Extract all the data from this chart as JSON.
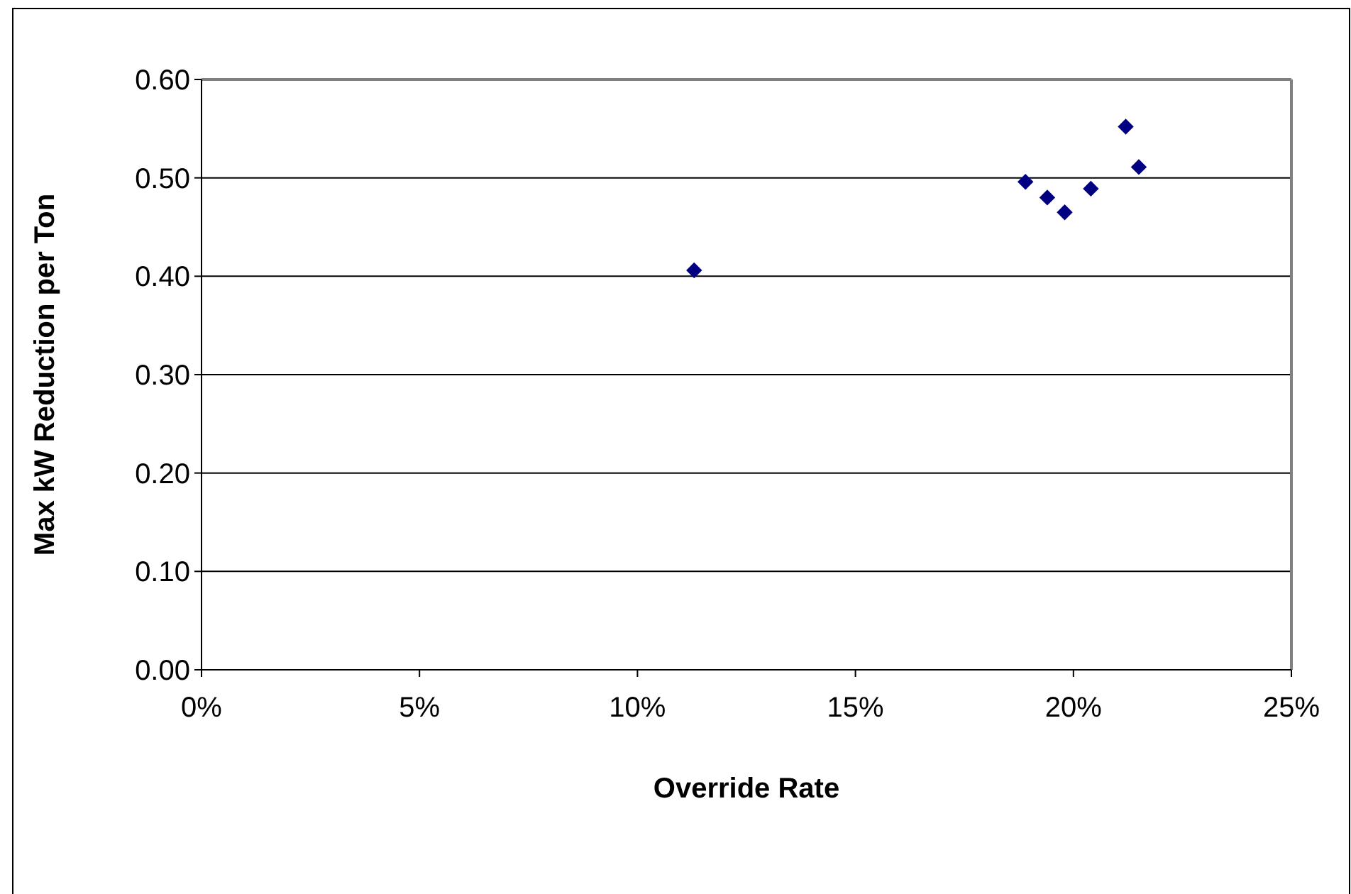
{
  "chart_data": {
    "type": "scatter",
    "xlabel": "Override Rate",
    "ylabel": "Max kW Reduction per Ton",
    "x": [
      11.3,
      18.9,
      19.4,
      19.8,
      20.4,
      21.2,
      21.5
    ],
    "series": [
      {
        "color": "#000080",
        "values": [
          0.406,
          0.496,
          0.48,
          0.465,
          0.489,
          0.552,
          0.511
        ]
      }
    ],
    "xlim": [
      0,
      25
    ],
    "xticks": [
      {
        "value": 0,
        "label": "0%"
      },
      {
        "value": 5,
        "label": "5%"
      },
      {
        "value": 10,
        "label": "10%"
      },
      {
        "value": 15,
        "label": "15%"
      },
      {
        "value": 20,
        "label": "20%"
      },
      {
        "value": 25,
        "label": "25%"
      }
    ],
    "ylim": [
      0,
      0.6
    ],
    "yticks": [
      {
        "value": 0,
        "label": "0.00"
      },
      {
        "value": 0.1,
        "label": "0.10"
      },
      {
        "value": 0.2,
        "label": "0.20"
      },
      {
        "value": 0.3,
        "label": "0.30"
      },
      {
        "value": 0.4,
        "label": "0.40"
      },
      {
        "value": 0.5,
        "label": "0.50"
      },
      {
        "value": 0.6,
        "label": "0.60"
      }
    ],
    "grid": "y",
    "marker": "diamond"
  }
}
